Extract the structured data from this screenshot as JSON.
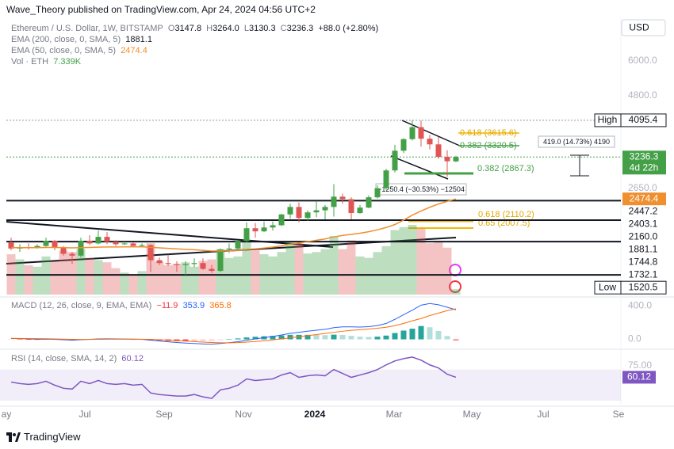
{
  "header": {
    "attribution": "Wave_Theory published on TradingView.com, Apr 24, 2024 04:56 UTC+2",
    "currency": "USD",
    "footer_logo": "TradingView"
  },
  "legend": {
    "symbol": "Ethereum / U.S. Dollar, 1W, BITSTAMP",
    "open": {
      "prefix": "O",
      "text": "3147.8"
    },
    "high": {
      "prefix": "H",
      "text": "3264.0"
    },
    "low": {
      "prefix": "L",
      "text": "3130.3"
    },
    "close": {
      "prefix": "C",
      "text": "3236.3"
    },
    "change": "+88.0 (+2.80%)",
    "ema200": {
      "label": "EMA (200, close, 0, SMA, 5)",
      "value": "1881.1"
    },
    "ema50": {
      "label": "EMA (50, close, 0, SMA, 5)",
      "value": "2474.4"
    },
    "vol": {
      "label": "Vol · ETH",
      "value": "7.339K"
    },
    "macd": {
      "label": "MACD (12, 26, close, 9, EMA, EMA)",
      "hist": "−11.9",
      "macd": "353.9",
      "signal": "365.8"
    },
    "rsi": {
      "label": "RSI (14, close, SMA, 14, 2)",
      "value": "60.12"
    }
  },
  "annotations": [
    "0.618 (3615.6)",
    "0.382 (3320.5)",
    "0.382 (2867.3)",
    "0.618 (2110.2)",
    "0.65 (2007.5)",
    "419.0 (14.73%) 4190",
    "−1250.4 (−30.53%) −12504"
  ],
  "chart_data": [
    {
      "type": "candlestick",
      "log_scale": true,
      "up_color": "#43a047",
      "down_color": "#e05555",
      "open": [
        1870,
        1800,
        1815,
        1810,
        1830,
        1890,
        1810,
        1740,
        1720,
        1890,
        1860,
        1940,
        1880,
        1850,
        1860,
        1830,
        1840,
        1670,
        1640,
        1630,
        1620,
        1630,
        1640,
        1580,
        1560,
        1790,
        1800,
        1890,
        2050,
        2010,
        2060,
        2090,
        2240,
        2350,
        2190,
        2270,
        2300,
        2350,
        2510,
        2470,
        2260,
        2340,
        2500,
        2650,
        2970,
        3370,
        3630,
        3920,
        3640,
        3510,
        3240,
        3147.8
      ],
      "high": [
        1930,
        1850,
        1860,
        1850,
        1930,
        1900,
        1830,
        1760,
        1930,
        1960,
        2020,
        2000,
        1900,
        1880,
        1870,
        1860,
        1850,
        1700,
        1730,
        1660,
        1660,
        1690,
        1690,
        1620,
        1800,
        1860,
        1900,
        2130,
        2120,
        2140,
        2140,
        2250,
        2400,
        2420,
        2300,
        2440,
        2380,
        2720,
        2560,
        2500,
        2380,
        2530,
        2700,
        3000,
        3500,
        3650,
        4095.4,
        4090,
        3730,
        3680,
        3380,
        3264.0
      ],
      "low": [
        1780,
        1760,
        1790,
        1800,
        1820,
        1780,
        1720,
        1630,
        1700,
        1840,
        1850,
        1850,
        1830,
        1840,
        1820,
        1820,
        1550,
        1620,
        1610,
        1550,
        1520.5,
        1600,
        1570,
        1540,
        1550,
        1750,
        1770,
        1870,
        1930,
        2000,
        2020,
        2080,
        2180,
        2130,
        2150,
        2200,
        2170,
        2210,
        2400,
        2170,
        2250,
        2330,
        2480,
        2620,
        2930,
        3320,
        3600,
        3460,
        3400,
        3200,
        2850,
        3130.3
      ],
      "close": [
        1800,
        1815,
        1810,
        1830,
        1890,
        1810,
        1740,
        1720,
        1890,
        1860,
        1940,
        1880,
        1850,
        1860,
        1830,
        1840,
        1670,
        1640,
        1630,
        1620,
        1630,
        1640,
        1580,
        1560,
        1790,
        1800,
        1890,
        2050,
        2010,
        2060,
        2090,
        2240,
        2350,
        2190,
        2270,
        2300,
        2350,
        2510,
        2470,
        2260,
        2340,
        2500,
        2650,
        2970,
        3370,
        3630,
        3920,
        3640,
        3510,
        3240,
        3150,
        3236.3
      ],
      "ema50": {
        "color": "#ef8f2e",
        "values": [
          1810,
          1810,
          1810,
          1810,
          1812,
          1812,
          1810,
          1808,
          1810,
          1812,
          1816,
          1818,
          1818,
          1819,
          1819,
          1820,
          1814,
          1808,
          1802,
          1797,
          1791,
          1786,
          1779,
          1772,
          1773,
          1774,
          1778,
          1788,
          1796,
          1806,
          1817,
          1832,
          1852,
          1865,
          1881,
          1898,
          1914,
          1938,
          1958,
          1971,
          1986,
          2005,
          2030,
          2060,
          2100,
          2160,
          2230,
          2290,
          2345,
          2395,
          2435,
          2474.4
        ]
      },
      "volume": {
        "values": [
          55000,
          48000,
          40000,
          38000,
          52000,
          45000,
          60000,
          58000,
          62000,
          50000,
          47000,
          44000,
          36000,
          30000,
          28000,
          32000,
          70000,
          45000,
          40000,
          42000,
          44000,
          38000,
          46000,
          48000,
          62000,
          50000,
          52000,
          75000,
          60000,
          55000,
          52000,
          58000,
          72000,
          70000,
          56000,
          58000,
          62000,
          80000,
          62000,
          74000,
          52000,
          50000,
          58000,
          66000,
          88000,
          92000,
          95000,
          90000,
          70000,
          72000,
          64000,
          7339
        ]
      },
      "ylim": [
        1340,
        7800
      ],
      "yticks": [
        {
          "value": 6000,
          "label": "6000.0"
        },
        {
          "value": 4800,
          "label": "4800.0"
        },
        {
          "value": 2650,
          "label": "2650.0"
        }
      ],
      "xticks": [
        "ay",
        "Jul",
        "Sep",
        "Nov",
        "2024",
        "Mar",
        "May",
        "Jul",
        "Se"
      ],
      "levels": [
        {
          "value": 4095.4,
          "tag": "High",
          "line": "dotted"
        },
        {
          "value": 3236.3,
          "tag": "4d 22h",
          "color": "#43a047",
          "line": "dotted"
        },
        {
          "value": 2474.4,
          "color": "#ef8f2e"
        },
        {
          "value": 2447.2,
          "line": "solid"
        },
        {
          "value": 2403.1
        },
        {
          "value": 2160,
          "label": "2160.0",
          "line": "solid"
        },
        {
          "value": 1881.1,
          "line": "solid"
        },
        {
          "value": 1744.8
        },
        {
          "value": 1732.1
        },
        {
          "value": 1520.5,
          "tag": "Low",
          "line": "solid"
        }
      ]
    },
    {
      "type": "macd",
      "macd_color": "#2962ff",
      "signal_color": "#ff6d00",
      "histogram_colors": [
        "#26a69a",
        "#b2dfdb",
        "#ffcdd2",
        "#ff5252"
      ],
      "macd": [
        10,
        8,
        5,
        2,
        3,
        0,
        -5,
        -10,
        -5,
        0,
        5,
        6,
        5,
        4,
        2,
        0,
        -10,
        -20,
        -30,
        -38,
        -45,
        -50,
        -55,
        -58,
        -50,
        -40,
        -28,
        -10,
        5,
        20,
        35,
        52,
        72,
        85,
        98,
        110,
        120,
        140,
        150,
        150,
        148,
        152,
        165,
        190,
        240,
        295,
        350,
        410,
        430,
        415,
        385,
        353.9
      ],
      "signal": [
        12,
        11,
        10,
        8,
        7,
        5,
        3,
        0,
        -1,
        -1,
        0,
        1,
        2,
        3,
        3,
        2,
        0,
        -4,
        -9,
        -15,
        -21,
        -27,
        -33,
        -38,
        -41,
        -41,
        -39,
        -33,
        -26,
        -17,
        -7,
        5,
        18,
        31,
        44,
        57,
        70,
        84,
        97,
        108,
        116,
        124,
        133,
        145,
        164,
        190,
        222,
        250,
        285,
        315,
        345,
        365.8
      ],
      "histogram": [
        -2,
        -3,
        -5,
        -6,
        -4,
        -5,
        -8,
        -10,
        -4,
        1,
        5,
        5,
        3,
        1,
        -1,
        -2,
        -10,
        -16,
        -21,
        -23,
        -24,
        -23,
        -22,
        -20,
        -9,
        1,
        11,
        23,
        31,
        37,
        42,
        47,
        54,
        54,
        54,
        53,
        50,
        56,
        53,
        42,
        32,
        28,
        32,
        45,
        76,
        105,
        128,
        160,
        145,
        100,
        40,
        -11.9
      ],
      "ylim": [
        -90,
        480
      ],
      "yticks": [
        {
          "value": 400,
          "label": "400.0"
        },
        {
          "value": 0,
          "label": "0.0"
        }
      ]
    },
    {
      "type": "line",
      "color": "#7e57c2",
      "band": [
        30,
        70
      ],
      "values": [
        54,
        52,
        51,
        52,
        55,
        50,
        46,
        45,
        55,
        52,
        56,
        52,
        51,
        52,
        50,
        51,
        40,
        38,
        37,
        36,
        36,
        38,
        35,
        33,
        44,
        46,
        50,
        58,
        56,
        57,
        58,
        63,
        66,
        60,
        62,
        63,
        62,
        70,
        65,
        60,
        63,
        66,
        70,
        76,
        81,
        84,
        86,
        82,
        76,
        72,
        64,
        60.12
      ],
      "ylim": [
        24,
        93
      ],
      "yticks": [
        {
          "value": 75,
          "label": "75.00"
        }
      ]
    }
  ]
}
